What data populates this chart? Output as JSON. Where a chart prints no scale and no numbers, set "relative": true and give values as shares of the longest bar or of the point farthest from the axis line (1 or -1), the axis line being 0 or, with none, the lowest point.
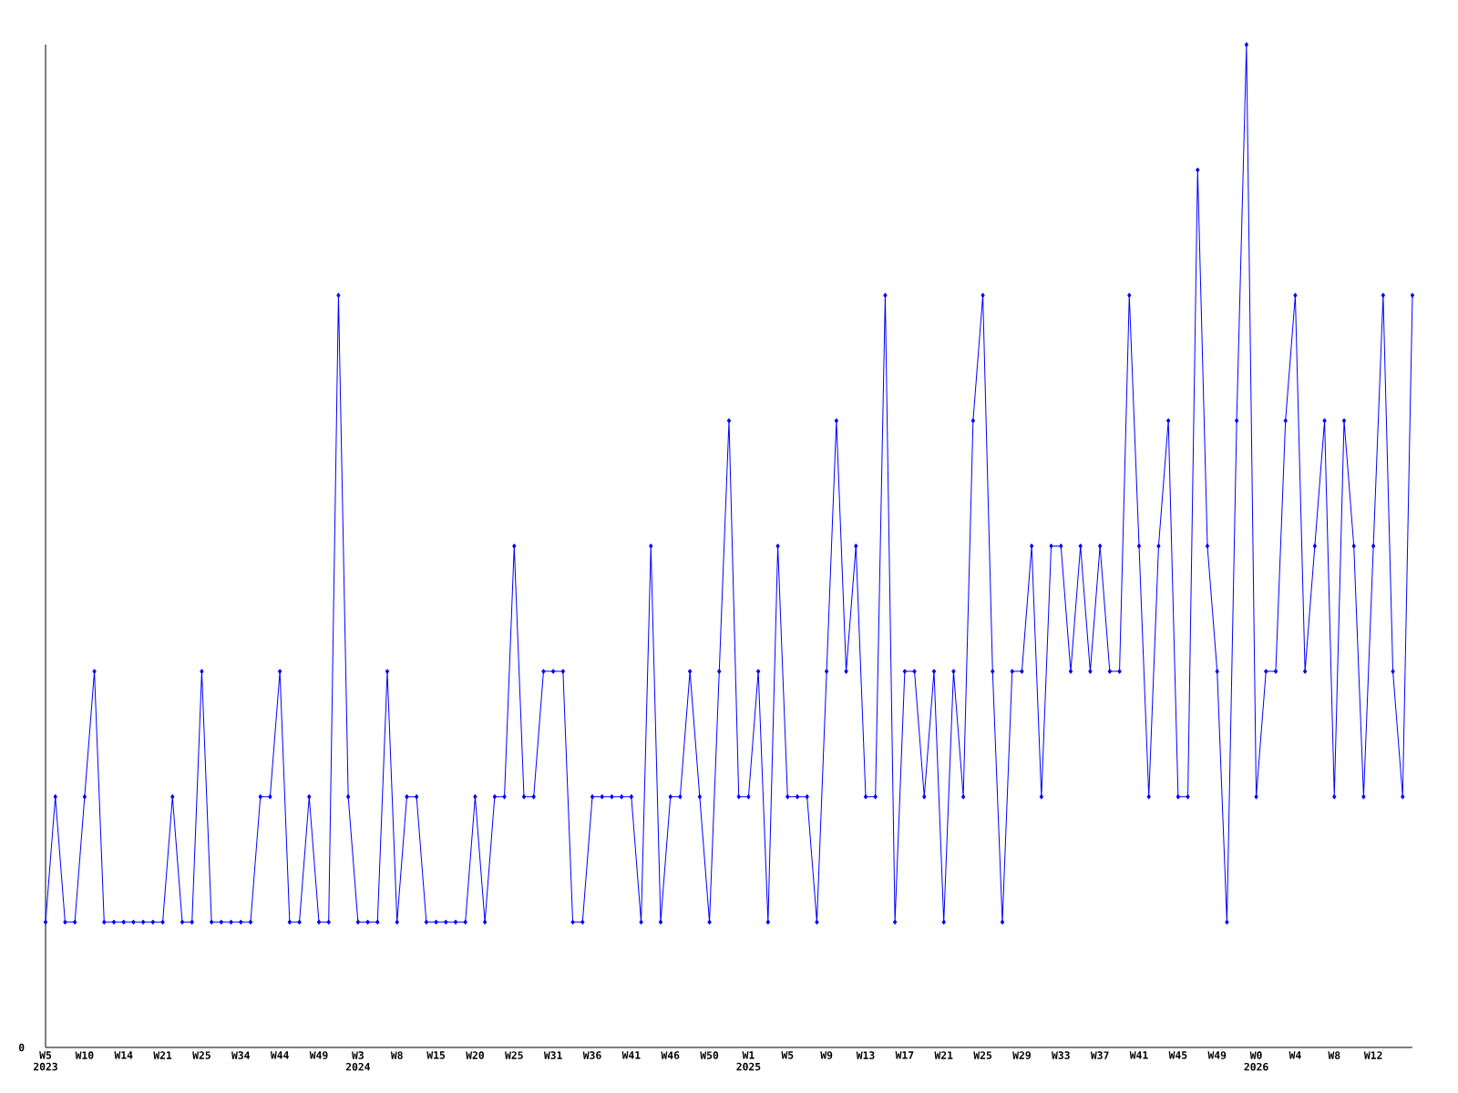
{
  "chart_data": {
    "type": "line",
    "relative": true,
    "marker": "diamond",
    "line_style": "solid",
    "categories": [
      "W5 2023",
      null,
      null,
      null,
      "W10",
      null,
      null,
      null,
      "W14",
      null,
      null,
      null,
      "W21",
      null,
      null,
      null,
      "W25",
      null,
      null,
      null,
      "W34",
      null,
      null,
      null,
      "W44",
      null,
      null,
      null,
      "W49",
      null,
      null,
      null,
      "W3 2024",
      null,
      null,
      null,
      "W8",
      null,
      null,
      null,
      "W15",
      null,
      null,
      null,
      "W20",
      null,
      null,
      null,
      "W25",
      null,
      null,
      null,
      "W31",
      null,
      null,
      null,
      "W36",
      null,
      null,
      null,
      "W41",
      null,
      null,
      null,
      "W46",
      null,
      null,
      null,
      "W50",
      null,
      null,
      null,
      "W1 2025",
      null,
      null,
      null,
      "W5",
      null,
      null,
      null,
      "W9",
      null,
      null,
      null,
      "W13",
      null,
      null,
      null,
      "W17",
      null,
      null,
      null,
      "W21",
      null,
      null,
      null,
      "W25",
      null,
      null,
      null,
      "W29",
      null,
      null,
      null,
      "W33",
      null,
      null,
      null,
      "W37",
      null,
      null,
      null,
      "W41",
      null,
      null,
      null,
      "W45",
      null,
      null,
      null,
      "W49",
      null,
      null,
      null,
      "W0 2026",
      null,
      null,
      null,
      "W4",
      null,
      null,
      null,
      "W8",
      null,
      null,
      null,
      "W12",
      null,
      null,
      null,
      null
    ],
    "series": [
      {
        "color": "#0000ff",
        "values": [
          0.125,
          0.25,
          0.125,
          0.125,
          0.25,
          0.375,
          0.125,
          0.125,
          0.125,
          0.125,
          0.125,
          0.125,
          0.125,
          0.25,
          0.125,
          0.125,
          0.375,
          0.125,
          0.125,
          0.125,
          0.125,
          0.125,
          0.25,
          0.25,
          0.375,
          0.125,
          0.125,
          0.25,
          0.125,
          0.125,
          0.75,
          0.25,
          0.125,
          0.125,
          0.125,
          0.375,
          0.125,
          0.25,
          0.25,
          0.125,
          0.125,
          0.125,
          0.125,
          0.125,
          0.25,
          0.125,
          0.25,
          0.25,
          0.5,
          0.25,
          0.25,
          0.375,
          0.375,
          0.375,
          0.125,
          0.125,
          0.25,
          0.25,
          0.25,
          0.25,
          0.25,
          0.125,
          0.5,
          0.125,
          0.25,
          0.25,
          0.375,
          0.25,
          0.125,
          0.375,
          0.625,
          0.25,
          0.25,
          0.375,
          0.125,
          0.5,
          0.25,
          0.25,
          0.25,
          0.125,
          0.375,
          0.625,
          0.375,
          0.5,
          0.25,
          0.25,
          0.75,
          0.125,
          0.375,
          0.375,
          0.25,
          0.375,
          0.125,
          0.375,
          0.25,
          0.625,
          0.75,
          0.375,
          0.125,
          0.375,
          0.375,
          0.5,
          0.25,
          0.5,
          0.5,
          0.375,
          0.5,
          0.375,
          0.5,
          0.375,
          0.375,
          0.75,
          0.5,
          0.25,
          0.5,
          0.625,
          0.25,
          0.25,
          0.875,
          0.5,
          0.375,
          0.125,
          0.625,
          1,
          0.25,
          0.375,
          0.375,
          0.625,
          0.75,
          0.375,
          0.5,
          0.625,
          0.25,
          0.625,
          0.5,
          0.25,
          0.5,
          0.75,
          0.375,
          0.25,
          0.75
        ]
      }
    ],
    "annotations": [
      "0"
    ]
  }
}
